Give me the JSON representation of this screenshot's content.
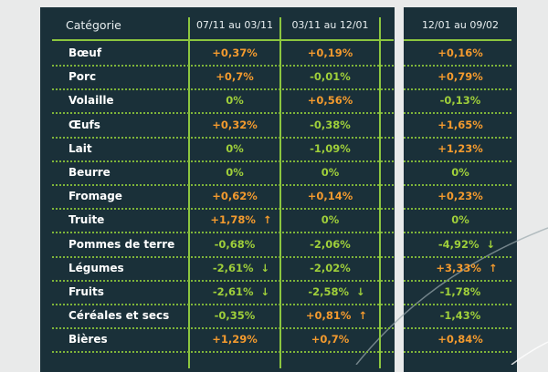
{
  "colors": {
    "background": "#e9eaea",
    "panel": "#1a3039",
    "accent_green": "#8cc63f",
    "increase": "#f39a2e",
    "decrease": "#9fcf3a"
  },
  "header": {
    "category": "Catégorie",
    "periods": [
      "07/11 au 03/11",
      "03/11 au 12/01",
      "12/01 au 09/02"
    ]
  },
  "rows": [
    {
      "category": "Bœuf",
      "values": [
        {
          "v": "+0,37%"
        },
        {
          "v": "+0,19%"
        },
        {
          "v": "+0,16%"
        }
      ]
    },
    {
      "category": "Porc",
      "values": [
        {
          "v": "+0,7%"
        },
        {
          "v": "-0,01%"
        },
        {
          "v": "+0,79%"
        }
      ]
    },
    {
      "category": "Volaille",
      "values": [
        {
          "v": "0%"
        },
        {
          "v": "+0,56%"
        },
        {
          "v": "-0,13%"
        }
      ]
    },
    {
      "category": "Œufs",
      "values": [
        {
          "v": "+0,32%"
        },
        {
          "v": "-0,38%"
        },
        {
          "v": "+1,65%"
        }
      ]
    },
    {
      "category": "Lait",
      "values": [
        {
          "v": "0%"
        },
        {
          "v": "-1,09%"
        },
        {
          "v": "+1,23%"
        }
      ]
    },
    {
      "category": "Beurre",
      "values": [
        {
          "v": "0%"
        },
        {
          "v": "0%"
        },
        {
          "v": "0%"
        }
      ]
    },
    {
      "category": "Fromage",
      "values": [
        {
          "v": "+0,62%"
        },
        {
          "v": "+0,14%"
        },
        {
          "v": "+0,23%"
        }
      ]
    },
    {
      "category": "Truite",
      "values": [
        {
          "v": "+1,78%",
          "arrow": "arrow-up"
        },
        {
          "v": "0%"
        },
        {
          "v": "0%"
        }
      ]
    },
    {
      "category": "Pommes de terre",
      "values": [
        {
          "v": "-0,68%"
        },
        {
          "v": "-2,06%"
        },
        {
          "v": "-4,92%",
          "arrow": "arrow-down"
        }
      ]
    },
    {
      "category": "Légumes",
      "values": [
        {
          "v": "-2,61%",
          "arrow": "arrow-down"
        },
        {
          "v": "-2,02%"
        },
        {
          "v": "+3,33%",
          "arrow": "arrow-up"
        }
      ]
    },
    {
      "category": "Fruits",
      "values": [
        {
          "v": "-2,61%",
          "arrow": "arrow-down"
        },
        {
          "v": "-2,58%",
          "arrow": "arrow-down"
        },
        {
          "v": "-1,78%"
        }
      ]
    },
    {
      "category": "Céréales et secs",
      "values": [
        {
          "v": "-0,35%"
        },
        {
          "v": "+0,81%",
          "arrow": "arrow-up"
        },
        {
          "v": "-1,43%"
        }
      ]
    },
    {
      "category": "Bières",
      "values": [
        {
          "v": "+1,29%"
        },
        {
          "v": "+0,7%"
        },
        {
          "v": "+0,84%"
        }
      ]
    }
  ]
}
